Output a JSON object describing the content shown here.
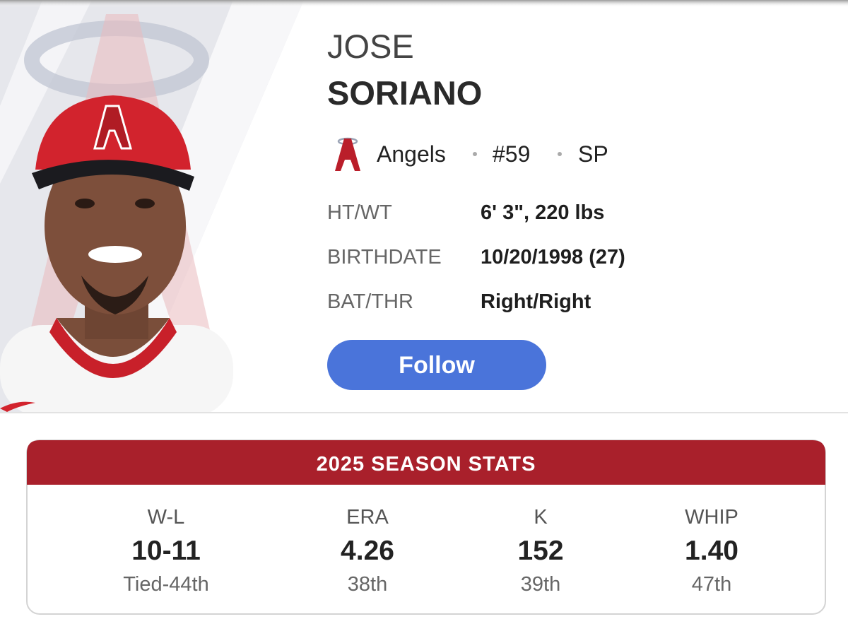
{
  "player": {
    "first_name": "JOSE",
    "last_name": "SORIANO",
    "team": "Angels",
    "number": "#59",
    "position": "SP",
    "bio": [
      {
        "label": "HT/WT",
        "value": "6' 3\", 220 lbs"
      },
      {
        "label": "BIRTHDATE",
        "value": "10/20/1998 (27)"
      },
      {
        "label": "BAT/THR",
        "value": "Right/Right"
      }
    ],
    "follow_button": "Follow"
  },
  "stats": {
    "title": "2025 SEASON STATS",
    "columns": [
      {
        "label": "W-L",
        "value": "10-11",
        "rank": "Tied-44th"
      },
      {
        "label": "ERA",
        "value": "4.26",
        "rank": "38th"
      },
      {
        "label": "K",
        "value": "152",
        "rank": "39th"
      },
      {
        "label": "WHIP",
        "value": "1.40",
        "rank": "47th"
      }
    ]
  }
}
